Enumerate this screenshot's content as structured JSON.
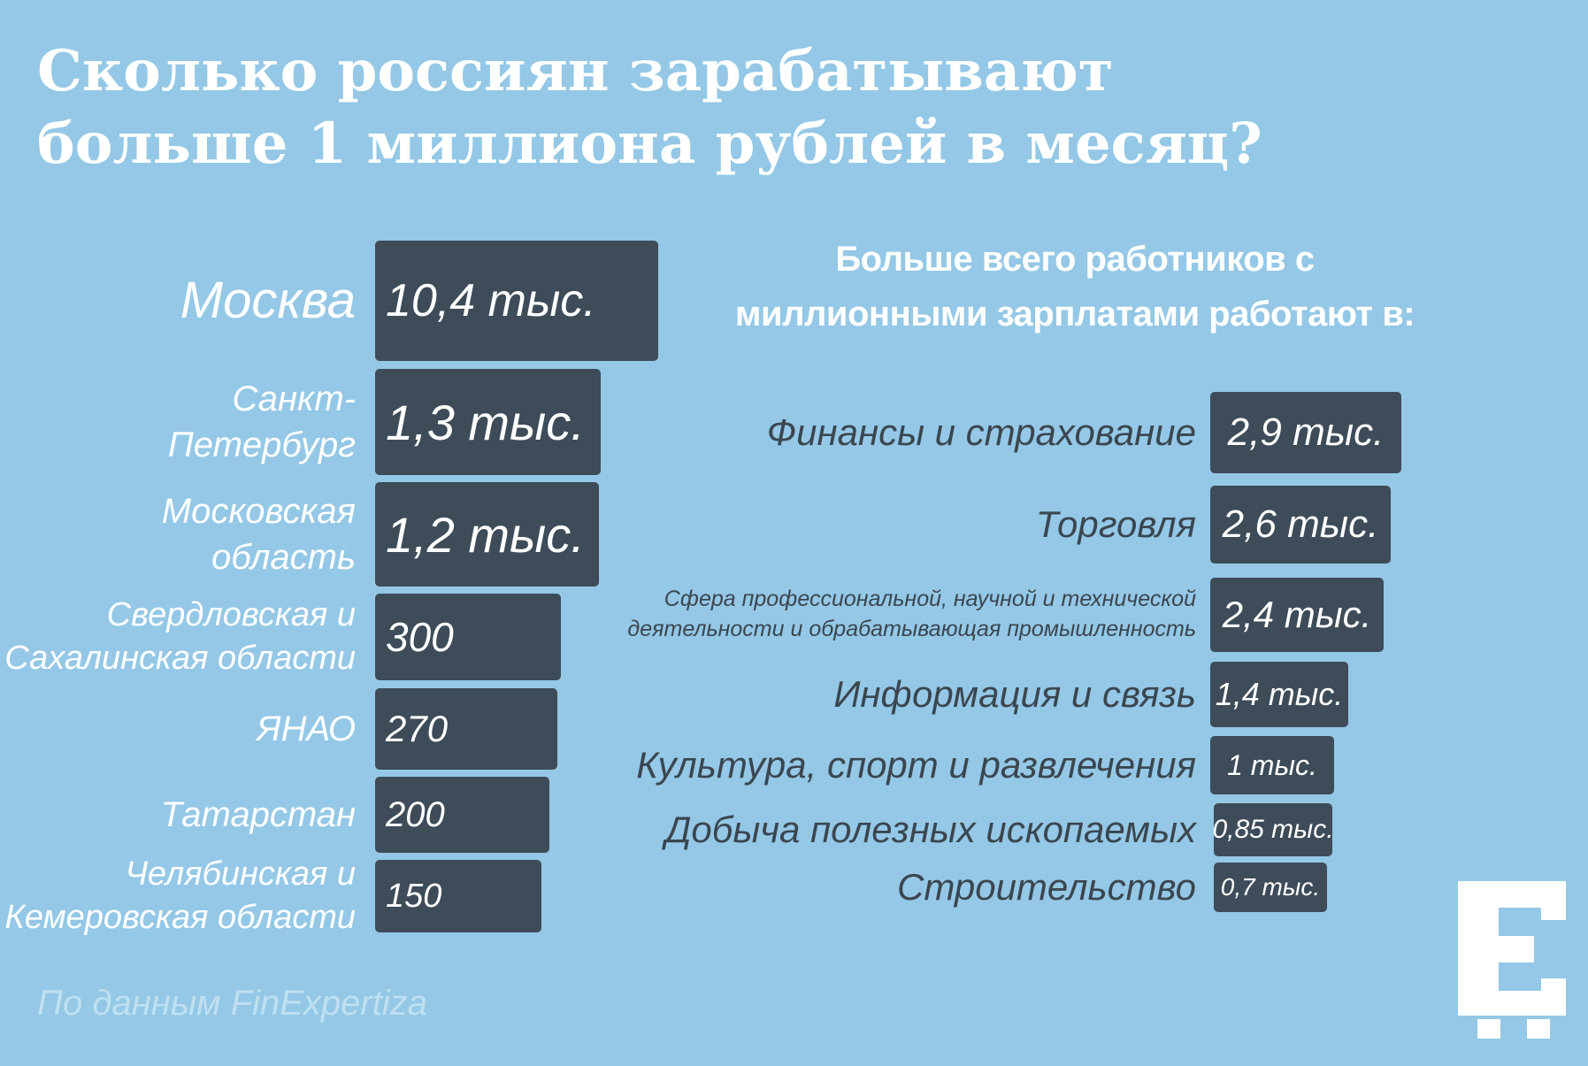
{
  "title_lines": [
    "Сколько россиян зарабатывают",
    "больше 1 миллиона рублей в месяц?"
  ],
  "subtitle_lines": [
    "Больше всего работников с",
    "миллионными зарплатами работают в:"
  ],
  "source": "По данным FinExpertiza",
  "logo_icon": "e-letter-logo-icon",
  "colors": {
    "background": "#94c8e6",
    "bar": "#3d4c58",
    "text_light": "#ffffff",
    "text_dark": "#3a4650"
  },
  "chart_data": [
    {
      "type": "bar",
      "orientation": "horizontal",
      "categories": [
        [
          "Москва"
        ],
        [
          "Санкт-",
          "Петербург"
        ],
        [
          "Московская",
          "область"
        ],
        [
          "Свердловская и",
          "Сахалинская области"
        ],
        [
          "ЯНАО"
        ],
        [
          "Татарстан"
        ],
        [
          "Челябинская и",
          "Кемеровская области"
        ]
      ],
      "values": [
        10400,
        1300,
        1200,
        300,
        270,
        200,
        150
      ],
      "value_labels": [
        "10,4 тыс.",
        "1,3 тыс.",
        "1,2 тыс.",
        "300",
        "270",
        "200",
        "150"
      ]
    },
    {
      "type": "bar",
      "orientation": "horizontal",
      "categories": [
        [
          "Финансы и страхование"
        ],
        [
          "Торговля"
        ],
        [
          "Сфера профессиональной, научной и технической",
          "деятельности и обрабатывающая промышленность"
        ],
        [
          "Информация и связь"
        ],
        [
          "Культура, спорт и развлечения"
        ],
        [
          "Добыча полезных ископаемых"
        ],
        [
          "Строительство"
        ]
      ],
      "values": [
        2900,
        2600,
        2400,
        1400,
        1000,
        850,
        700
      ],
      "value_labels": [
        "2,9 тыс.",
        "2,6 тыс.",
        "2,4 тыс.",
        "1,4 тыс.",
        "1 тыс.",
        "0,85 тыс.",
        "0,7 тыс."
      ]
    }
  ]
}
